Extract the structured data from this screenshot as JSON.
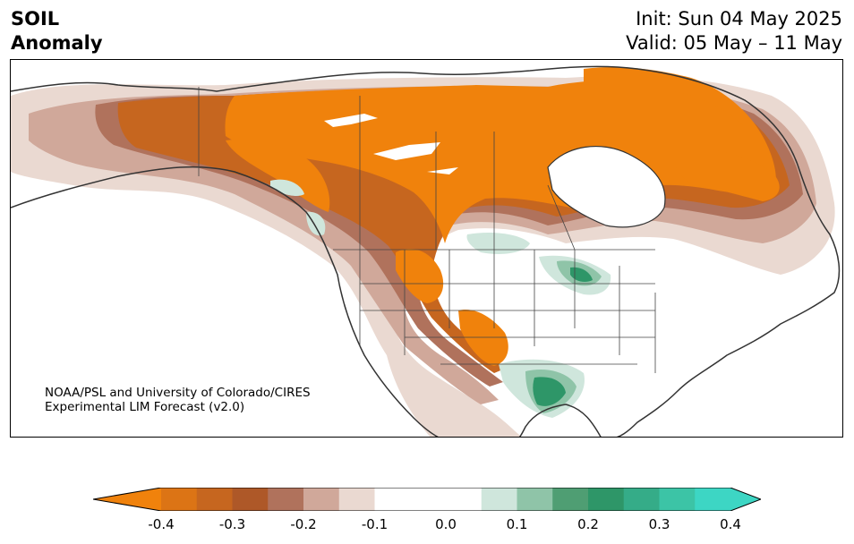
{
  "title": {
    "variable": "SOIL",
    "subtitle": "Anomaly",
    "init": "Init: Sun 04 May 2025",
    "valid": "Valid: 05 May – 11 May"
  },
  "credit": {
    "line1": "NOAA/PSL and University of Colorado/CIRES",
    "line2": "Experimental LIM Forecast (v2.0)"
  },
  "colorbar": {
    "levels": [
      -0.4,
      -0.35,
      -0.3,
      -0.25,
      -0.2,
      -0.15,
      -0.1,
      -0.05,
      0.05,
      0.1,
      0.15,
      0.2,
      0.25,
      0.3,
      0.35,
      0.4
    ],
    "colors": [
      "#f0820c",
      "#dc7415",
      "#c6661f",
      "#ae5828",
      "#b0725c",
      "#d0a89a",
      "#ead9d1",
      "#ffffff",
      "#ffffff",
      "#cfe6dc",
      "#8fc4a8",
      "#4f9e73",
      "#2e9668",
      "#35ac88",
      "#3cc4a6",
      "#3dd6c4"
    ],
    "under_color": "#f0820c",
    "over_color": "#3dd6c4",
    "tick_labels": [
      "-0.4",
      "-0.3",
      "-0.2",
      "-0.1",
      "0.0",
      "0.1",
      "0.2",
      "0.3",
      "0.4"
    ],
    "tick_values": [
      -0.4,
      -0.3,
      -0.2,
      -0.1,
      0.0,
      0.1,
      0.2,
      0.3,
      0.4
    ]
  },
  "map": {
    "region": "North America",
    "colors": {
      "strong_dry": "#f0820c",
      "dry2": "#c6661f",
      "dry3": "#b0725c",
      "dry_light": "#d0a89a",
      "dry_faint": "#ead9d1",
      "wet_faint": "#cfe6dc",
      "wet_mid": "#8fc4a8",
      "wet_strong": "#2e9668",
      "coast": "#333333"
    }
  }
}
